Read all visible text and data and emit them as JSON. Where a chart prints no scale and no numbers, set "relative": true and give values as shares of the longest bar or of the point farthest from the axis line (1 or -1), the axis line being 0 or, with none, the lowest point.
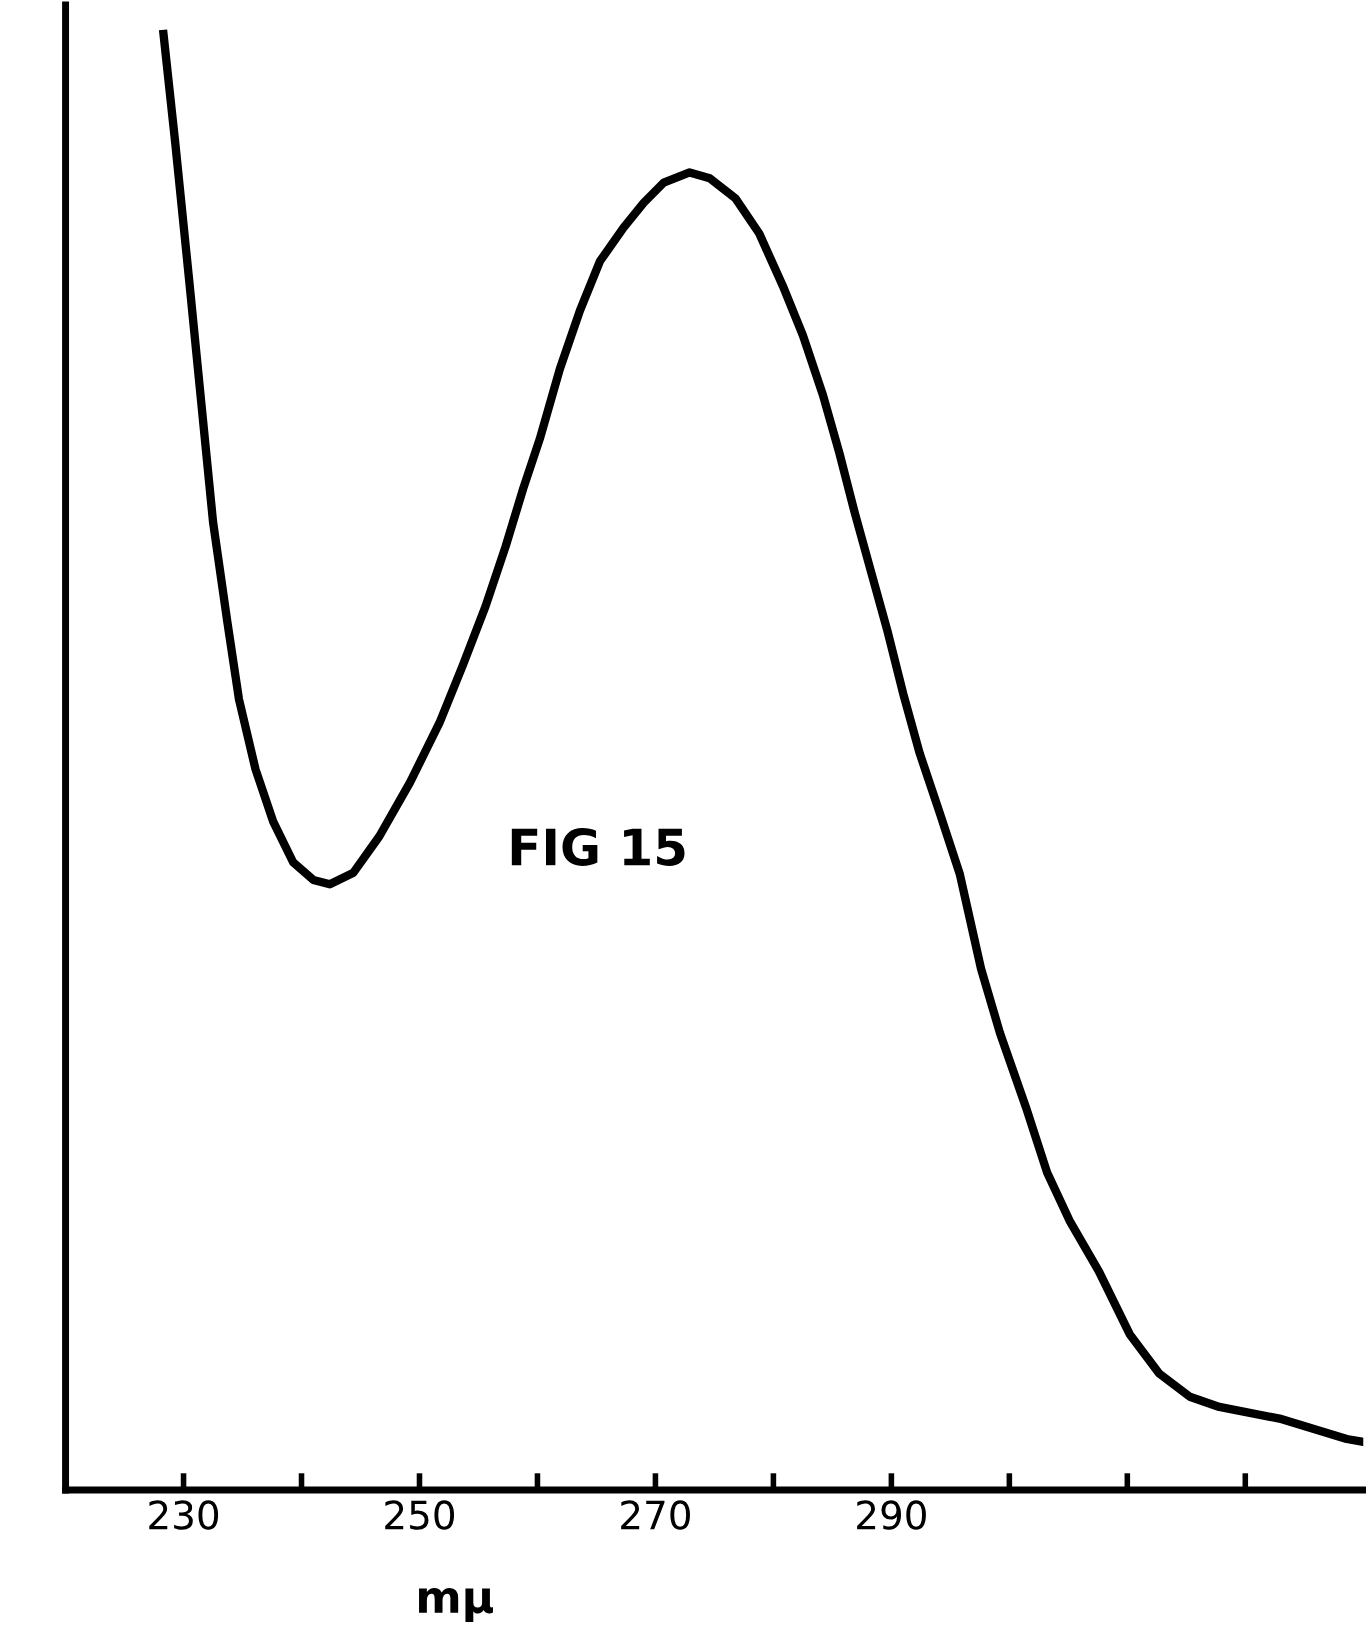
{
  "chart_data": {
    "type": "line",
    "relative": true,
    "xlabel": "mμ",
    "annotations": [
      "FIG 15"
    ],
    "xlim": [
      220,
      330
    ],
    "xticks": [
      230,
      {
        "value": 240,
        "label": null
      },
      250,
      {
        "value": 260,
        "label": null
      },
      270,
      {
        "value": 280,
        "label": null
      },
      290,
      {
        "value": 300,
        "label": null
      },
      {
        "value": 310,
        "label": null
      },
      {
        "value": 320,
        "label": null
      }
    ],
    "tick_labels": "x",
    "grid": false,
    "legend": false,
    "series": [
      {
        "color": "#000000",
        "x": [
          228.3,
          229.3,
          230.5,
          231.5,
          232.5,
          233.7,
          234.7,
          236.1,
          237.6,
          239.3,
          241.0,
          242.4,
          244.4,
          246.6,
          249.2,
          251.7,
          253.7,
          255.6,
          257.3,
          258.8,
          260.2,
          261.9,
          263.6,
          265.3,
          267.3,
          269.0,
          270.7,
          272.9,
          274.6,
          276.8,
          278.8,
          280.8,
          282.5,
          284.2,
          285.6,
          286.9,
          288.3,
          289.7,
          291.0,
          292.4,
          294.1,
          295.8,
          297.6,
          299.2,
          301.4,
          303.2,
          305.1,
          307.6,
          310.2,
          312.7,
          315.3,
          317.8,
          322.9,
          328.6,
          330.0
        ],
        "values": [
          1.0,
          0.925,
          0.829,
          0.747,
          0.665,
          0.597,
          0.543,
          0.495,
          0.459,
          0.431,
          0.419,
          0.416,
          0.424,
          0.449,
          0.486,
          0.527,
          0.567,
          0.607,
          0.648,
          0.688,
          0.722,
          0.77,
          0.81,
          0.844,
          0.867,
          0.884,
          0.898,
          0.905,
          0.901,
          0.887,
          0.863,
          0.827,
          0.793,
          0.752,
          0.712,
          0.671,
          0.63,
          0.589,
          0.547,
          0.506,
          0.465,
          0.423,
          0.358,
          0.314,
          0.263,
          0.218,
          0.185,
          0.15,
          0.107,
          0.08,
          0.064,
          0.057,
          0.049,
          0.035,
          0.033
        ]
      }
    ]
  }
}
